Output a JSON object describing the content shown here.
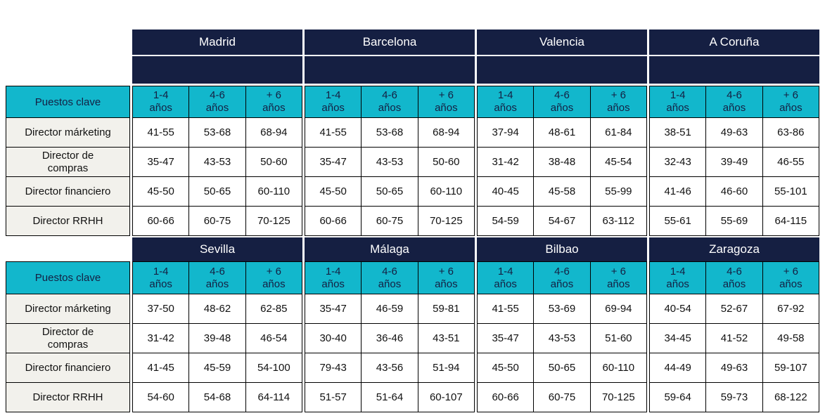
{
  "labels": {
    "puestos_clave": "Puestos clave"
  },
  "exp_headers": [
    "1-4\naños",
    "4-6\naños",
    "+ 6\naños"
  ],
  "colors": {
    "navy": "#151F42",
    "cyan": "#12B7CC",
    "label_bg": "#F2F1EC"
  },
  "tables": [
    {
      "cities": [
        "Madrid",
        "Barcelona",
        "Valencia",
        "A Coruña"
      ],
      "rows": [
        {
          "label": "Director márketing",
          "values": [
            [
              "41-55",
              "53-68",
              "68-94"
            ],
            [
              "41-55",
              "53-68",
              "68-94"
            ],
            [
              "37-94",
              "48-61",
              "61-84"
            ],
            [
              "38-51",
              "49-63",
              "63-86"
            ]
          ]
        },
        {
          "label": "Director de\ncompras",
          "values": [
            [
              "35-47",
              "43-53",
              "50-60"
            ],
            [
              "35-47",
              "43-53",
              "50-60"
            ],
            [
              "31-42",
              "38-48",
              "45-54"
            ],
            [
              "32-43",
              "39-49",
              "46-55"
            ]
          ]
        },
        {
          "label": "Director financiero",
          "values": [
            [
              "45-50",
              "50-65",
              "60-110"
            ],
            [
              "45-50",
              "50-65",
              "60-110"
            ],
            [
              "40-45",
              "45-58",
              "55-99"
            ],
            [
              "41-46",
              "46-60",
              "55-101"
            ]
          ]
        },
        {
          "label": "Director RRHH",
          "values": [
            [
              "60-66",
              "60-75",
              "70-125"
            ],
            [
              "60-66",
              "60-75",
              "70-125"
            ],
            [
              "54-59",
              "54-67",
              "63-112"
            ],
            [
              "55-61",
              "55-69",
              "64-115"
            ]
          ]
        }
      ]
    },
    {
      "cities": [
        "Sevilla",
        "Málaga",
        "Bilbao",
        "Zaragoza"
      ],
      "rows": [
        {
          "label": "Director márketing",
          "values": [
            [
              "37-50",
              "48-62",
              "62-85"
            ],
            [
              "35-47",
              "46-59",
              "59-81"
            ],
            [
              "41-55",
              "53-69",
              "69-94"
            ],
            [
              "40-54",
              "52-67",
              "67-92"
            ]
          ]
        },
        {
          "label": "Director de\ncompras",
          "values": [
            [
              "31-42",
              "39-48",
              "46-54"
            ],
            [
              "30-40",
              "36-46",
              "43-51"
            ],
            [
              "35-47",
              "43-53",
              "51-60"
            ],
            [
              "34-45",
              "41-52",
              "49-58"
            ]
          ]
        },
        {
          "label": "Director financiero",
          "values": [
            [
              "41-45",
              "45-59",
              "54-100"
            ],
            [
              "79-43",
              "43-56",
              "51-94"
            ],
            [
              "45-50",
              "50-65",
              "60-110"
            ],
            [
              "44-49",
              "49-63",
              "59-107"
            ]
          ]
        },
        {
          "label": "Director RRHH",
          "values": [
            [
              "54-60",
              "54-68",
              "64-114"
            ],
            [
              "51-57",
              "51-64",
              "60-107"
            ],
            [
              "60-66",
              "60-75",
              "70-125"
            ],
            [
              "59-64",
              "59-73",
              "68-122"
            ]
          ]
        }
      ]
    }
  ]
}
